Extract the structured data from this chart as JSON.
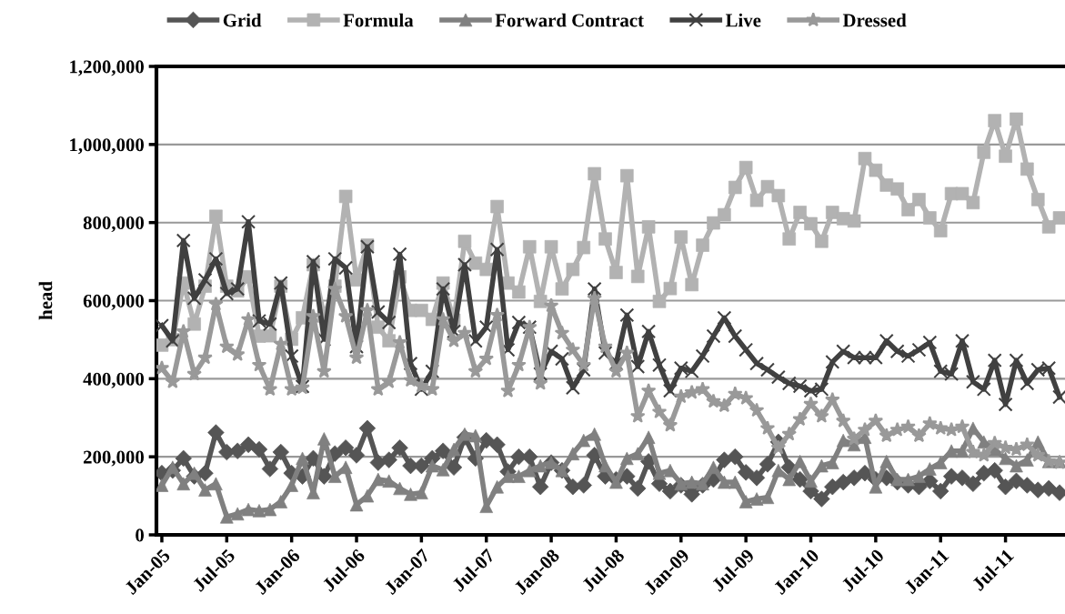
{
  "chart_data": {
    "type": "line",
    "ylabel": "head",
    "ylim": [
      0,
      1200000
    ],
    "yticks": [
      {
        "value": 0,
        "label": "0"
      },
      {
        "value": 200000,
        "label": "200,000"
      },
      {
        "value": 400000,
        "label": "400,000"
      },
      {
        "value": 600000,
        "label": "600,000"
      },
      {
        "value": 800000,
        "label": "800,000"
      },
      {
        "value": 1000000,
        "label": "1,000,000"
      },
      {
        "value": 1200000,
        "label": "1,200,000"
      }
    ],
    "grid": "y",
    "legend": "top",
    "line_style": "solid",
    "categories": [
      "Jan-05",
      null,
      null,
      null,
      null,
      null,
      "Jul-05",
      null,
      null,
      null,
      null,
      null,
      "Jan-06",
      null,
      null,
      null,
      null,
      null,
      "Jul-06",
      null,
      null,
      null,
      null,
      null,
      "Jan-07",
      null,
      null,
      null,
      null,
      null,
      "Jul-07",
      null,
      null,
      null,
      null,
      null,
      "Jan-08",
      null,
      null,
      null,
      null,
      null,
      "Jul-08",
      null,
      null,
      null,
      null,
      null,
      "Jan-09",
      null,
      null,
      null,
      null,
      null,
      "Jul-09",
      null,
      null,
      null,
      null,
      null,
      "Jan-10",
      null,
      null,
      null,
      null,
      null,
      "Jul-10",
      null,
      null,
      null,
      null,
      null,
      "Jan-11",
      null,
      null,
      null,
      null,
      null,
      "Jul-11",
      null,
      null,
      null,
      null,
      null
    ],
    "series": [
      {
        "name": "Grid",
        "color": "#555555",
        "marker": "diamond",
        "values": [
          158000,
          165000,
          196000,
          150000,
          158000,
          262000,
          212000,
          215000,
          231000,
          219000,
          169000,
          212000,
          158000,
          150000,
          196000,
          150000,
          208000,
          223000,
          204000,
          273000,
          185000,
          192000,
          223000,
          177000,
          177000,
          196000,
          215000,
          173000,
          250000,
          196000,
          242000,
          231000,
          162000,
          200000,
          200000,
          123000,
          185000,
          165000,
          123000,
          127000,
          204000,
          150000,
          142000,
          150000,
          119000,
          188000,
          131000,
          112000,
          127000,
          104000,
          127000,
          142000,
          192000,
          200000,
          160000,
          146000,
          181000,
          238000,
          173000,
          142000,
          112000,
          92000,
          123000,
          135000,
          146000,
          158000,
          142000,
          146000,
          135000,
          127000,
          123000,
          138000,
          112000,
          150000,
          146000,
          131000,
          158000,
          165000,
          123000,
          138000,
          127000,
          115000,
          119000,
          108000
        ]
      },
      {
        "name": "Formula",
        "color": "#b2b2b2",
        "marker": "square",
        "values": [
          486000,
          500000,
          645000,
          540000,
          637000,
          816000,
          637000,
          625000,
          661000,
          509000,
          510000,
          637000,
          501000,
          556000,
          692000,
          560000,
          637000,
          867000,
          653000,
          742000,
          532000,
          497000,
          661000,
          575000,
          575000,
          552000,
          645000,
          550000,
          752000,
          696000,
          680000,
          841000,
          645000,
          622000,
          738000,
          598000,
          738000,
          630000,
          680000,
          736000,
          925000,
          758000,
          672000,
          920000,
          662000,
          789000,
          598000,
          631000,
          763000,
          641000,
          742000,
          799000,
          820000,
          890000,
          941000,
          857000,
          892000,
          869000,
          758000,
          826000,
          797000,
          752000,
          826000,
          810000,
          804000,
          964000,
          934000,
          896000,
          886000,
          833000,
          859000,
          812000,
          779000,
          874000,
          874000,
          851000,
          980000,
          1061000,
          970000,
          1065000,
          937000,
          859000,
          789000,
          812000
        ]
      },
      {
        "name": "Forward Contract",
        "color": "#808080",
        "marker": "triangle",
        "values": [
          127000,
          173000,
          131000,
          158000,
          115000,
          131000,
          46000,
          54000,
          65000,
          62000,
          65000,
          85000,
          127000,
          196000,
          108000,
          246000,
          150000,
          173000,
          77000,
          100000,
          142000,
          138000,
          119000,
          104000,
          108000,
          177000,
          167000,
          219000,
          258000,
          254000,
          73000,
          123000,
          150000,
          150000,
          165000,
          177000,
          185000,
          165000,
          208000,
          242000,
          258000,
          177000,
          135000,
          196000,
          208000,
          250000,
          158000,
          165000,
          131000,
          135000,
          131000,
          173000,
          135000,
          135000,
          85000,
          92000,
          96000,
          165000,
          142000,
          188000,
          138000,
          177000,
          185000,
          242000,
          231000,
          250000,
          123000,
          188000,
          142000,
          142000,
          150000,
          169000,
          185000,
          215000,
          215000,
          273000,
          238000,
          219000,
          196000,
          177000,
          192000,
          238000,
          188000,
          188000
        ]
      },
      {
        "name": "Live",
        "color": "#404040",
        "marker": "cross",
        "values": [
          536000,
          497000,
          754000,
          606000,
          653000,
          707000,
          618000,
          630000,
          802000,
          548000,
          540000,
          645000,
          458000,
          380000,
          700000,
          501000,
          707000,
          684000,
          482000,
          738000,
          571000,
          544000,
          719000,
          439000,
          373000,
          419000,
          630000,
          521000,
          692000,
          497000,
          532000,
          731000,
          474000,
          544000,
          532000,
          412000,
          470000,
          451000,
          377000,
          423000,
          630000,
          466000,
          439000,
          563000,
          431000,
          521000,
          435000,
          369000,
          427000,
          419000,
          458000,
          509000,
          556000,
          509000,
          474000,
          439000,
          423000,
          404000,
          388000,
          381000,
          369000,
          373000,
          443000,
          470000,
          454000,
          454000,
          454000,
          497000,
          470000,
          458000,
          474000,
          493000,
          419000,
          412000,
          497000,
          392000,
          373000,
          447000,
          334000,
          447000,
          388000,
          423000,
          427000,
          353000
        ]
      },
      {
        "name": "Dressed",
        "color": "#999999",
        "marker": "star",
        "values": [
          427000,
          392000,
          521000,
          412000,
          454000,
          591000,
          482000,
          462000,
          552000,
          435000,
          373000,
          489000,
          373000,
          377000,
          560000,
          419000,
          630000,
          560000,
          454000,
          575000,
          373000,
          392000,
          493000,
          396000,
          381000,
          373000,
          552000,
          497000,
          517000,
          419000,
          451000,
          563000,
          369000,
          435000,
          532000,
          388000,
          587000,
          517000,
          474000,
          435000,
          606000,
          482000,
          419000,
          466000,
          304000,
          369000,
          315000,
          281000,
          354000,
          365000,
          373000,
          342000,
          331000,
          361000,
          350000,
          319000,
          273000,
          223000,
          258000,
          296000,
          335000,
          304000,
          346000,
          292000,
          246000,
          269000,
          292000,
          254000,
          269000,
          277000,
          254000,
          285000,
          273000,
          269000,
          277000,
          212000,
          204000,
          235000,
          223000,
          219000,
          231000,
          204000,
          188000,
          185000
        ]
      }
    ]
  }
}
